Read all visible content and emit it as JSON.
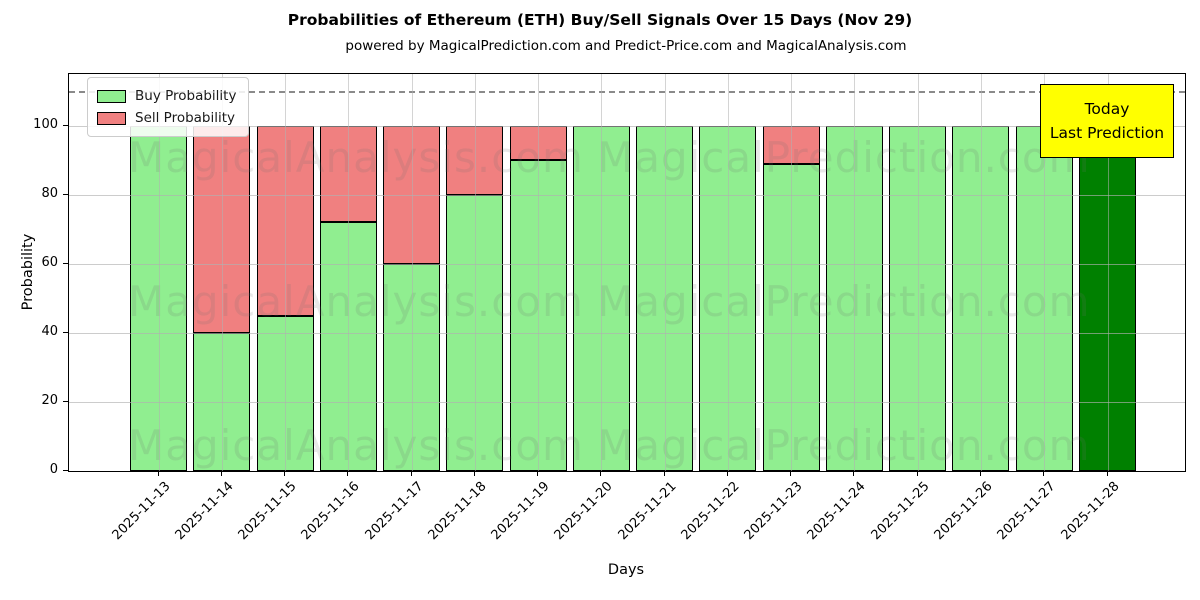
{
  "title": "Probabilities of Ethereum (ETH) Buy/Sell Signals Over 15 Days (Nov 29)",
  "subtitle": "powered by MagicalPrediction.com and Predict-Price.com and MagicalAnalysis.com",
  "legend": {
    "buy_label": "Buy Probability",
    "sell_label": "Sell Probability"
  },
  "annotation_box": {
    "line1": "Today",
    "line2": "Last Prediction"
  },
  "watermarks": {
    "left_text": "MagicalAnalysis.com",
    "right_text": "MagicalPrediction.com"
  },
  "colors": {
    "buy_green": "#90EE90",
    "sell_red": "#F08080",
    "today_dark_green": "#008000",
    "annotation_yellow": "#ffff00",
    "grid_gray": "#b0b0b0",
    "dashed_gray": "#8a8a8a"
  },
  "chart_data": {
    "type": "bar",
    "stacked": true,
    "title": "Probabilities of Ethereum (ETH) Buy/Sell Signals Over 15 Days (Nov 29)",
    "xlabel": "Days",
    "ylabel": "Probability",
    "categories": [
      "2025-11-13",
      "2025-11-14",
      "2025-11-15",
      "2025-11-16",
      "2025-11-17",
      "2025-11-18",
      "2025-11-19",
      "2025-11-20",
      "2025-11-21",
      "2025-11-22",
      "2025-11-23",
      "2025-11-24",
      "2025-11-25",
      "2025-11-26",
      "2025-11-27",
      "2025-11-28"
    ],
    "series": [
      {
        "name": "Buy Probability",
        "color": "#90EE90",
        "values": [
          100,
          40,
          45,
          72,
          60,
          80,
          90,
          100,
          100,
          100,
          89,
          100,
          100,
          100,
          100,
          100
        ]
      },
      {
        "name": "Sell Probability",
        "color": "#F08080",
        "values": [
          0,
          60,
          55,
          28,
          40,
          20,
          10,
          0,
          0,
          0,
          11,
          0,
          0,
          0,
          0,
          0
        ]
      }
    ],
    "today_bar": {
      "category": "2025-11-28",
      "buy_value": 100,
      "color": "#008000",
      "label": "Today / Last Prediction"
    },
    "yticks": [
      0,
      20,
      40,
      60,
      80,
      100
    ],
    "ylim": [
      0,
      115
    ],
    "dashed_line_y": 110,
    "grid": true,
    "legend_position": "upper left"
  }
}
